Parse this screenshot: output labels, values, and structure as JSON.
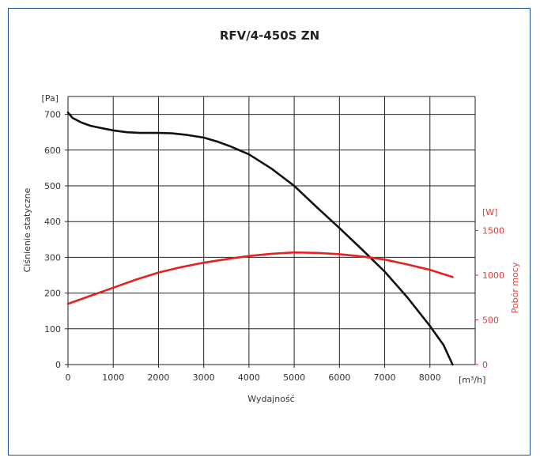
{
  "chart_data": {
    "type": "line",
    "title": "RFV/4-450S ZN",
    "xlabel": "Wydajność",
    "x_unit": "[m³/h]",
    "ylabel": "Ciśnienie statyczne",
    "y_unit": "[Pa]",
    "y2label": "Pobór mocy",
    "y2_unit": "[W]",
    "xlim": [
      0,
      9000
    ],
    "ylim": [
      0,
      750
    ],
    "y2lim": [
      0,
      3000
    ],
    "x_ticks": [
      0,
      1000,
      2000,
      3000,
      4000,
      5000,
      6000,
      7000,
      8000
    ],
    "y_ticks": [
      0,
      100,
      200,
      300,
      400,
      500,
      600,
      700
    ],
    "y2_ticks": [
      0,
      500,
      1000,
      1500
    ],
    "grid": true,
    "colors": {
      "pressure": "#111111",
      "power": "#e52222",
      "frame": "#1f4e8c"
    },
    "series": [
      {
        "axis": "left",
        "x": [
          0,
          100,
          300,
          500,
          800,
          1000,
          1300,
          1600,
          2000,
          2300,
          2600,
          3000,
          3300,
          3600,
          4000,
          4500,
          5000,
          5500,
          6000,
          6500,
          7000,
          7500,
          8000,
          8300,
          8500
        ],
        "y": [
          705,
          690,
          677,
          668,
          660,
          655,
          650,
          648,
          648,
          647,
          643,
          635,
          624,
          610,
          588,
          548,
          500,
          440,
          382,
          322,
          260,
          188,
          108,
          55,
          0
        ]
      },
      {
        "axis": "right",
        "x": [
          0,
          500,
          1000,
          1500,
          2000,
          2500,
          3000,
          3500,
          4000,
          4500,
          5000,
          5500,
          6000,
          6500,
          7000,
          7500,
          8000,
          8500
        ],
        "y": [
          680,
          770,
          860,
          950,
          1030,
          1090,
          1140,
          1180,
          1215,
          1240,
          1255,
          1250,
          1235,
          1210,
          1175,
          1120,
          1060,
          980
        ]
      }
    ]
  }
}
